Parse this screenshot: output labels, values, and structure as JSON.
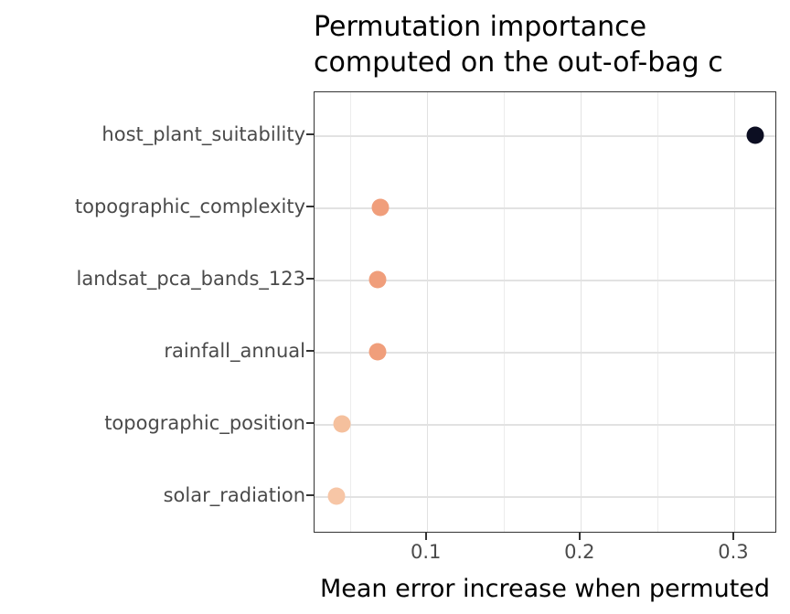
{
  "colors": {
    "background": "#ffffff",
    "panel_border": "#333333",
    "grid_major": "#e2e2e2",
    "grid_minor": "#ececec",
    "title_text": "#000000",
    "axis_text": "#4a4a4a",
    "tick_mark": "#333333"
  },
  "chart_data": {
    "type": "scatter",
    "title_line1": "Permutation importance",
    "title_line2": "computed on the out-of-bag c",
    "xlabel": "Mean error increase when permuted",
    "ylabel": "",
    "categories": [
      "host_plant_suitability",
      "topographic_complexity",
      "landsat_pca_bands_123",
      "rainfall_annual",
      "topographic_position",
      "solar_radiation"
    ],
    "values": [
      0.314,
      0.07,
      0.068,
      0.068,
      0.045,
      0.041
    ],
    "point_colors": [
      "#0c0e22",
      "#f09e7b",
      "#f09e7b",
      "#f09e7b",
      "#f5c09d",
      "#f7c6a6"
    ],
    "xlim": [
      0.027,
      0.328
    ],
    "x_major_ticks": [
      0.1,
      0.2,
      0.3
    ],
    "x_major_tick_labels": [
      "0.1",
      "0.2",
      "0.3"
    ],
    "x_minor_gridlines": [
      0.05,
      0.15,
      0.25
    ],
    "grid": "on",
    "legend": "none"
  }
}
